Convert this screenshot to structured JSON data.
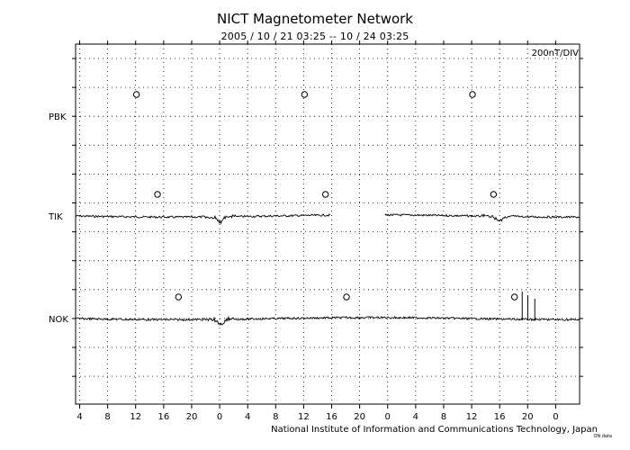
{
  "chart_data": {
    "type": "line",
    "title": "NICT Magnetometer Network",
    "subtitle": "2005 / 10 / 21   03:25 -- 10 / 24   03:25",
    "scale_label": "200nT/DIV",
    "credit": "National Institute of Information and Communications Technology, Japan",
    "credit_small": "ON data",
    "x_tick_labels": [
      "4",
      "8",
      "12",
      "16",
      "20",
      "0",
      "4",
      "8",
      "12",
      "16",
      "20",
      "0",
      "4",
      "8",
      "12",
      "16",
      "20",
      "0"
    ],
    "xlim_hours": [
      0,
      72
    ],
    "x_tick_hours": [
      0.58,
      4.58,
      8.58,
      12.58,
      16.58,
      20.58,
      24.58,
      28.58,
      32.58,
      36.58,
      40.58,
      44.58,
      48.58,
      52.58,
      56.58,
      60.58,
      64.58,
      68.58
    ],
    "grid": true,
    "stations": [
      {
        "name": "PBK",
        "marker_hours": [
          8.7,
          32.7,
          56.7
        ],
        "segments": []
      },
      {
        "name": "TIK",
        "marker_hours": [
          11.7,
          35.7,
          59.7
        ],
        "segments": [
          {
            "start": 0,
            "end": 36.4
          },
          {
            "start": 44.2,
            "end": 72
          }
        ]
      },
      {
        "name": "NOK",
        "marker_hours": [
          14.7,
          38.7,
          62.7
        ],
        "segments": [
          {
            "start": 0,
            "end": 72
          }
        ]
      }
    ]
  }
}
